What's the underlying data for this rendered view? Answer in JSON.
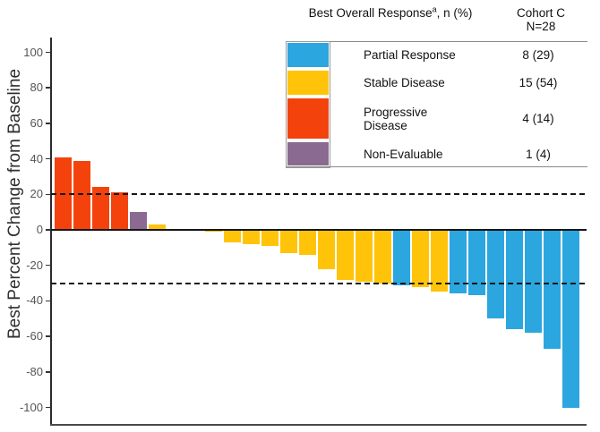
{
  "legend": {
    "title_prefix": "Best Overall Response",
    "title_sup": "a",
    "title_suffix": ", n (%)",
    "cohort_name": "Cohort C",
    "cohort_n": "N=28",
    "rows": [
      {
        "key": "partial-response",
        "label": "Partial Response",
        "value": "8 (29)",
        "color": "#2BA6DF"
      },
      {
        "key": "stable-disease",
        "label": "Stable Disease",
        "value": "15 (54)",
        "color": "#FFC40A"
      },
      {
        "key": "progressive-disease",
        "label": "Progressive\nDisease",
        "value": "4 (14)",
        "color": "#F4420D"
      },
      {
        "key": "non-evaluable",
        "label": "Non-Evaluable",
        "value": "1 (4)",
        "color": "#8A6A91"
      }
    ]
  },
  "chart_data": {
    "type": "bar",
    "title": "",
    "xlabel": "",
    "ylabel": "Best Percent Change from Baseline",
    "ylim": [
      -110,
      108
    ],
    "yticks": [
      100,
      80,
      60,
      40,
      20,
      0,
      -20,
      -40,
      -60,
      -80,
      -100
    ],
    "ytick_labels": [
      "100",
      "80",
      "60",
      "40",
      "20",
      "0",
      "-20",
      "-40",
      "-60",
      "-80",
      "-100"
    ],
    "reference_lines": [
      20,
      -30
    ],
    "grid": false,
    "legend_position": "top-right",
    "colors": {
      "pr": "#2BA6DF",
      "sd": "#FFC40A",
      "pd": "#F4420D",
      "ne": "#8A6A91"
    },
    "color_meaning": {
      "pr": "Partial Response",
      "sd": "Stable Disease",
      "pd": "Progressive Disease",
      "ne": "Non-Evaluable"
    },
    "bars": [
      {
        "value": 41,
        "response": "pd"
      },
      {
        "value": 39,
        "response": "pd"
      },
      {
        "value": 24,
        "response": "pd"
      },
      {
        "value": 21,
        "response": "pd"
      },
      {
        "value": 10,
        "response": "ne"
      },
      {
        "value": 3,
        "response": "sd"
      },
      {
        "value": 0,
        "response": "sd"
      },
      {
        "value": 0,
        "response": "sd"
      },
      {
        "value": -1,
        "response": "sd"
      },
      {
        "value": -7,
        "response": "sd"
      },
      {
        "value": -8,
        "response": "sd"
      },
      {
        "value": -9,
        "response": "sd"
      },
      {
        "value": -13,
        "response": "sd"
      },
      {
        "value": -14,
        "response": "sd"
      },
      {
        "value": -22,
        "response": "sd"
      },
      {
        "value": -28,
        "response": "sd"
      },
      {
        "value": -29,
        "response": "sd"
      },
      {
        "value": -30,
        "response": "sd"
      },
      {
        "value": -31,
        "response": "pr"
      },
      {
        "value": -32,
        "response": "sd"
      },
      {
        "value": -35,
        "response": "sd"
      },
      {
        "value": -36,
        "response": "pr"
      },
      {
        "value": -37,
        "response": "pr"
      },
      {
        "value": -50,
        "response": "pr"
      },
      {
        "value": -56,
        "response": "pr"
      },
      {
        "value": -58,
        "response": "pr"
      },
      {
        "value": -67,
        "response": "pr"
      },
      {
        "value": -100,
        "response": "pr"
      }
    ]
  }
}
